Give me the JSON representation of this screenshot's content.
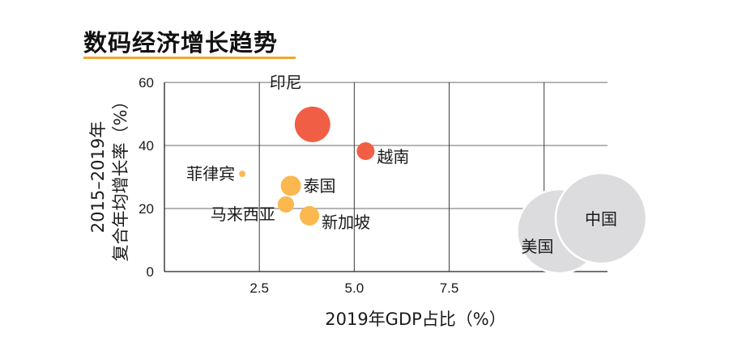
{
  "header": {
    "title": "数码经济增长趋势"
  },
  "colors": {
    "accent": "#F2A52B",
    "large_bubble": "#F05F45",
    "small_bubble": "#FBB84F",
    "reference_bubble": "#DCDCDE"
  },
  "chart_data": {
    "type": "scatter",
    "title": "数码经济增长趋势",
    "xlabel": "2019年GDP占比（%）",
    "ylabel_lines": [
      "2015–2019年",
      "复合年均增长率（%）"
    ],
    "xlim": [
      0,
      11.67
    ],
    "ylim": [
      0,
      60
    ],
    "x_gridlines": [
      2.5,
      5.0,
      7.5,
      10.0
    ],
    "y_gridlines": [
      20,
      40,
      60
    ],
    "x_ticks": [
      {
        "value": 2.5,
        "label": "2.5"
      },
      {
        "value": 5.0,
        "label": "5.0"
      },
      {
        "value": 7.5,
        "label": "7.5"
      }
    ],
    "y_ticks": [
      {
        "value": 0,
        "label": "0"
      },
      {
        "value": 20,
        "label": "20"
      },
      {
        "value": 40,
        "label": "40"
      },
      {
        "value": 60,
        "label": "60"
      }
    ],
    "grid": true,
    "points": [
      {
        "name": "印尼",
        "x": 3.9,
        "y": 46.7,
        "size": 100,
        "group": "large",
        "label_pos": "top-left"
      },
      {
        "name": "越南",
        "x": 5.3,
        "y": 38.2,
        "size": 25,
        "group": "large",
        "label_pos": "right-below"
      },
      {
        "name": "菲律宾",
        "x": 2.05,
        "y": 31.0,
        "size": 3.3,
        "group": "small",
        "label_pos": "left"
      },
      {
        "name": "泰国",
        "x": 3.33,
        "y": 27.2,
        "size": 32,
        "group": "small",
        "label_pos": "right"
      },
      {
        "name": "马来西亚",
        "x": 3.2,
        "y": 21.3,
        "size": 21,
        "group": "small",
        "label_pos": "left-below"
      },
      {
        "name": "新加坡",
        "x": 3.82,
        "y": 17.7,
        "size": 30,
        "group": "small",
        "label_pos": "right-below"
      },
      {
        "name": "美国",
        "x": 10.4,
        "y": 12.8,
        "size": 559,
        "group": "reference",
        "label_pos": "inside-bottom-left"
      },
      {
        "name": "中国",
        "x": 11.5,
        "y": 16.9,
        "size": 648,
        "group": "reference",
        "label_pos": "inside"
      }
    ]
  }
}
